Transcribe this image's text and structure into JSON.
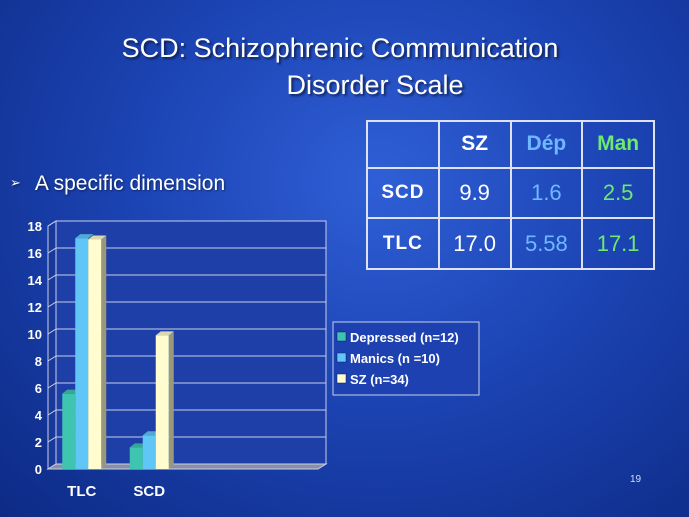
{
  "slide": {
    "title_line1": "SCD: Schizophrenic Communication",
    "title_line2": "Disorder Scale",
    "bullet_marker": "➢",
    "bullet": "A specific dimension",
    "slide_number": "19"
  },
  "table": {
    "columns": [
      "",
      "SZ",
      "Dép",
      "Man"
    ],
    "column_colors": [
      "#ffffff",
      "#ffffff",
      "#6fb8ff",
      "#6ee86e"
    ],
    "rows": [
      {
        "label": "SCD",
        "values": [
          "9.9",
          "1.6",
          "2.5"
        ]
      },
      {
        "label": "TLC",
        "values": [
          "17.0",
          "5.58",
          "17.1"
        ]
      }
    ]
  },
  "chart_data": {
    "type": "bar",
    "style": "3d-clustered",
    "categories": [
      "TLC",
      "SCD",
      "",
      ""
    ],
    "ylim": [
      0,
      18
    ],
    "yticks": [
      0,
      2,
      4,
      6,
      8,
      10,
      12,
      14,
      16,
      18
    ],
    "grid": true,
    "legend_position": "right",
    "series": [
      {
        "name": "Depressed (n=12)",
        "color": "#3fc4b0",
        "values": [
          5.58,
          1.6,
          null,
          null
        ]
      },
      {
        "name": "Manics (n =10)",
        "color": "#5fc6f5",
        "values": [
          17.1,
          2.5,
          null,
          null
        ]
      },
      {
        "name": "SZ (n=34)",
        "color": "#fffdd0",
        "values": [
          17.0,
          9.9,
          null,
          null
        ]
      }
    ]
  }
}
